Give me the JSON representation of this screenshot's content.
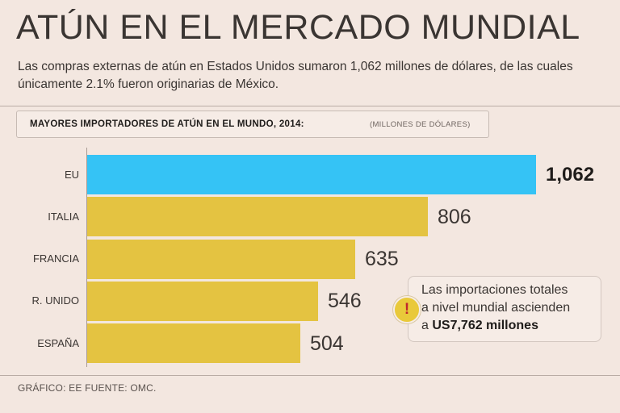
{
  "title": "ATÚN EN EL MERCADO MUNDIAL",
  "subtitle": "Las compras externas de atún en Estados Unidos sumaron 1,062 millones de dólares, de las cuales únicamente 2.1% fueron originarias de México.",
  "header": {
    "title": "MAYORES IMPORTADORES DE ATÚN EN EL MUNDO, 2014:",
    "units": "(MILLONES DE DÓLARES)"
  },
  "note": {
    "line1": "Las importaciones totales",
    "line2": "a nivel mundial ascienden",
    "prefix": "a ",
    "highlight": "US7,762 millones",
    "icon": "exclamation-icon"
  },
  "footer": "GRÁFICO: EE  FUENTE: OMC.",
  "colors": {
    "highlight_bar": "#35c3f5",
    "bar": "#e4c341",
    "background": "#f3e7e0"
  },
  "chart_data": {
    "type": "bar",
    "orientation": "horizontal",
    "title": "MAYORES IMPORTADORES DE ATÚN EN EL MUNDO, 2014:",
    "units": "(MILLONES DE DÓLARES)",
    "categories": [
      "EU",
      "ITALIA",
      "FRANCIA",
      "R. UNIDO",
      "ESPAÑA"
    ],
    "values": [
      1062,
      806,
      635,
      546,
      504
    ],
    "value_labels": [
      "1,062",
      "806",
      "635",
      "546",
      "504"
    ],
    "highlight_index": 0,
    "xlim": [
      0,
      1062
    ]
  }
}
